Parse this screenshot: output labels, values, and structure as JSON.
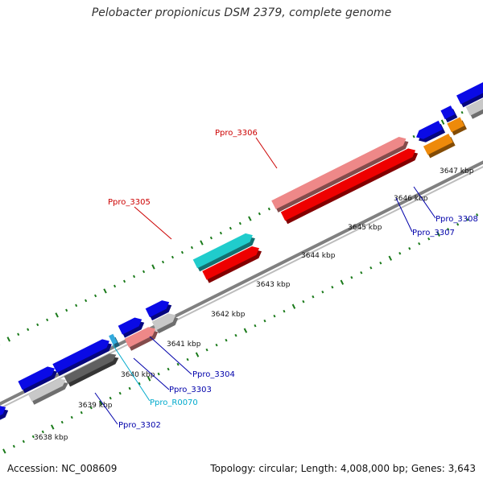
{
  "title": "Pelobacter propionicus DSM 2379, complete genome",
  "accession_text": "Accession: NC_008609",
  "summary_text": "Topology: circular; Length: 4,008,000 bp; Genes: 3,643",
  "colors": {
    "backbone": "#808080",
    "tick_dots": "#1a7a1a",
    "cds": "#0a0ae6",
    "cds_red": "#ee0000",
    "cds_pink": "#ee8888",
    "cds_cyan": "#20cccc",
    "cds_orange": "#ee8a0a",
    "cds_lightgray": "#c8c8c8",
    "cds_darkgray": "#606060",
    "label_blue": "#0000aa",
    "label_red": "#cc0000",
    "label_cyan": "#00aacc"
  },
  "scale_labels": [
    "3638 kbp",
    "3639 kbp",
    "3640 kbp",
    "3641 kbp",
    "3642 kbp",
    "3643 kbp",
    "3644 kbp",
    "3645 kbp",
    "3646 kbp",
    "3647 kbp"
  ],
  "gene_labels": [
    {
      "text": "Ppro_3302",
      "color": "blue"
    },
    {
      "text": "Ppro_3303",
      "color": "blue"
    },
    {
      "text": "Ppro_3304",
      "color": "blue"
    },
    {
      "text": "Ppro_R0070",
      "color": "cyan"
    },
    {
      "text": "Ppro_3305",
      "color": "red"
    },
    {
      "text": "Ppro_3306",
      "color": "red"
    },
    {
      "text": "Ppro_3307",
      "color": "blue"
    },
    {
      "text": "Ppro_3308",
      "color": "blue"
    }
  ]
}
